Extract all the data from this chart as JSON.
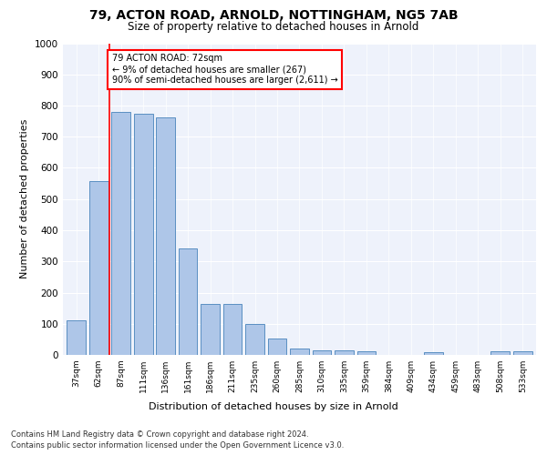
{
  "title_line1": "79, ACTON ROAD, ARNOLD, NOTTINGHAM, NG5 7AB",
  "title_line2": "Size of property relative to detached houses in Arnold",
  "xlabel": "Distribution of detached houses by size in Arnold",
  "ylabel": "Number of detached properties",
  "categories": [
    "37sqm",
    "62sqm",
    "87sqm",
    "111sqm",
    "136sqm",
    "161sqm",
    "186sqm",
    "211sqm",
    "235sqm",
    "260sqm",
    "285sqm",
    "310sqm",
    "335sqm",
    "359sqm",
    "384sqm",
    "409sqm",
    "434sqm",
    "459sqm",
    "483sqm",
    "508sqm",
    "533sqm"
  ],
  "values": [
    112,
    557,
    779,
    775,
    762,
    343,
    163,
    163,
    98,
    53,
    20,
    15,
    15,
    12,
    0,
    0,
    10,
    0,
    0,
    12,
    12
  ],
  "bar_color": "#aec6e8",
  "bar_edge_color": "#5a8fc2",
  "red_line_index": 1.5,
  "annotation_text": "79 ACTON ROAD: 72sqm\n← 9% of detached houses are smaller (267)\n90% of semi-detached houses are larger (2,611) →",
  "ylim": [
    0,
    1000
  ],
  "yticks": [
    0,
    100,
    200,
    300,
    400,
    500,
    600,
    700,
    800,
    900,
    1000
  ],
  "footer_line1": "Contains HM Land Registry data © Crown copyright and database right 2024.",
  "footer_line2": "Contains public sector information licensed under the Open Government Licence v3.0.",
  "background_color": "#eef2fb",
  "grid_color": "#ffffff",
  "title1_fontsize": 10,
  "title2_fontsize": 8.5,
  "ylabel_fontsize": 8,
  "xlabel_fontsize": 8,
  "ytick_fontsize": 7.5,
  "xtick_fontsize": 6.5,
  "ann_fontsize": 7,
  "footer_fontsize": 6
}
